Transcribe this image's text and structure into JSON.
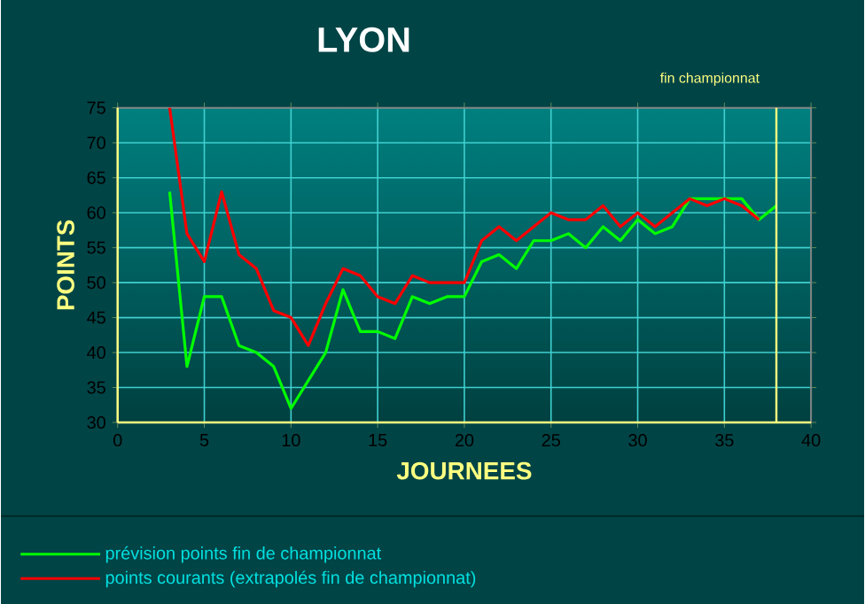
{
  "chart_data": {
    "type": "line",
    "title": "LYON",
    "xlabel": "JOURNEES",
    "ylabel": "POINTS",
    "xlim": [
      0,
      40
    ],
    "xticks": [
      0,
      5,
      10,
      15,
      20,
      25,
      30,
      35,
      40
    ],
    "ylim": [
      30,
      75
    ],
    "yticks": [
      30,
      35,
      40,
      45,
      50,
      55,
      60,
      65,
      70,
      75
    ],
    "grid": true,
    "legend": "bottom",
    "ref_lines": [
      {
        "axis": "x",
        "value": 38,
        "label": "fin championnat",
        "color": "#ffff80"
      }
    ],
    "series": [
      {
        "name": "prévision points fin de championnat",
        "color": "#00ff00",
        "x": [
          3,
          4,
          5,
          6,
          7,
          8,
          9,
          10,
          11,
          12,
          13,
          14,
          15,
          16,
          17,
          18,
          19,
          20,
          21,
          22,
          23,
          24,
          25,
          26,
          27,
          28,
          29,
          30,
          31,
          32,
          33,
          34,
          35,
          36,
          37,
          38
        ],
        "values": [
          63,
          38,
          48,
          48,
          41,
          40,
          38,
          32,
          36,
          40,
          49,
          43,
          43,
          42,
          48,
          47,
          48,
          48,
          53,
          54,
          52,
          56,
          56,
          57,
          55,
          58,
          56,
          59,
          57,
          58,
          62,
          62,
          62,
          62,
          59,
          61
        ]
      },
      {
        "name": "points courants (extrapolés fin de championnat)",
        "color": "#ff0000",
        "x": [
          3,
          4,
          5,
          6,
          7,
          8,
          9,
          10,
          11,
          12,
          13,
          14,
          15,
          16,
          17,
          18,
          19,
          20,
          21,
          22,
          23,
          24,
          25,
          26,
          27,
          28,
          29,
          30,
          31,
          32,
          33,
          34,
          35,
          36,
          37
        ],
        "values": [
          75,
          57,
          53,
          63,
          54,
          52,
          46,
          45,
          41,
          47,
          52,
          51,
          48,
          47,
          51,
          50,
          50,
          50,
          56,
          58,
          56,
          58,
          60,
          59,
          59,
          61,
          58,
          60,
          58,
          60,
          62,
          61,
          62,
          61,
          59
        ]
      }
    ]
  }
}
